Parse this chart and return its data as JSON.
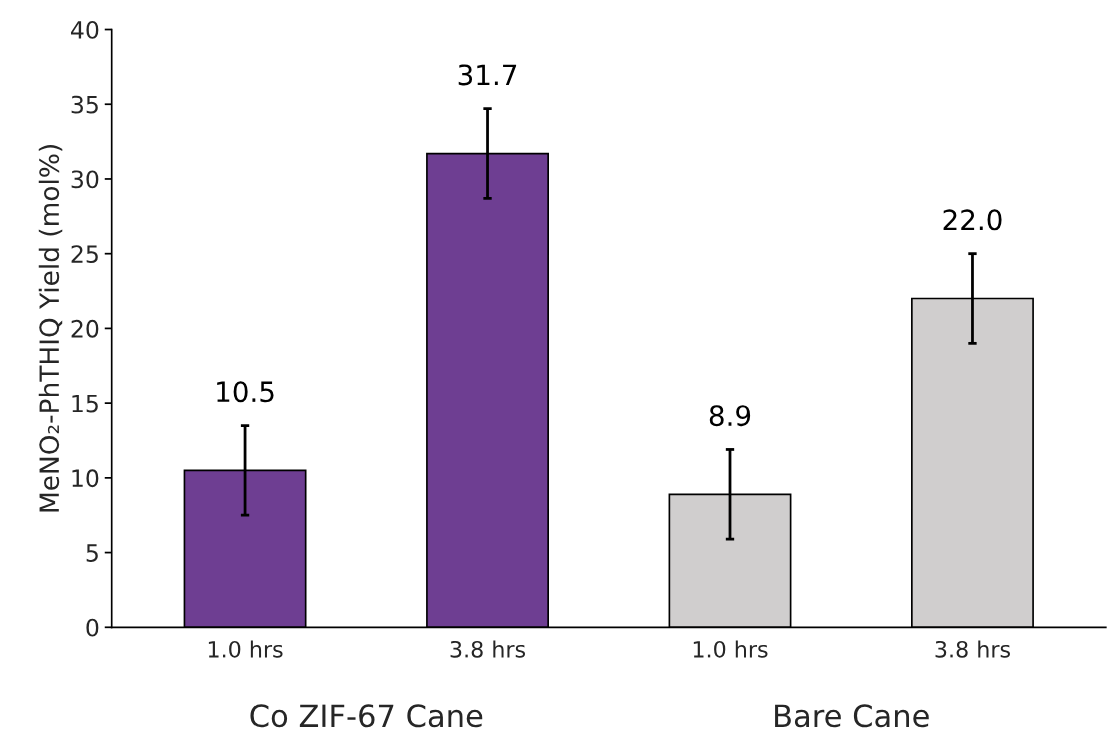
{
  "chart_data": {
    "type": "bar",
    "ylabel": "MeNO₂-PhTHIQ Yield (mol%)",
    "categories": [
      "1.0 hrs",
      "3.8 hrs",
      "1.0 hrs",
      "3.8 hrs"
    ],
    "values": [
      10.5,
      31.7,
      8.9,
      22.0
    ],
    "colors": [
      "#7030a0",
      "#7030a0",
      "#d0cece",
      "#d0cece"
    ],
    "errors": [
      3,
      3,
      3,
      3
    ],
    "value_labels": [
      "10.5",
      "31.7",
      "8.9",
      "22.0"
    ],
    "ylim": [
      0,
      40
    ],
    "yticks": [
      0,
      5,
      10,
      15,
      20,
      25,
      30,
      35,
      40
    ],
    "grid": false,
    "legend": false,
    "annotations": [
      "Co ZIF-67 Cane",
      "Bare Cane"
    ]
  }
}
